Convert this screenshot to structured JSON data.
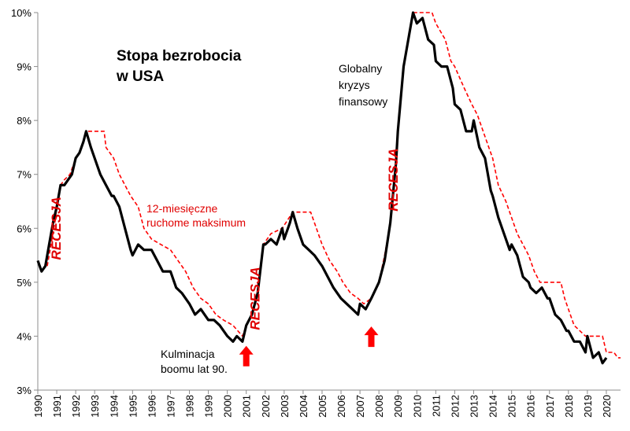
{
  "chart_data": {
    "type": "line",
    "title": [
      "Stopa bezrobocia",
      "w USA"
    ],
    "ylim": [
      3,
      10
    ],
    "xlim": [
      1990,
      2020.75
    ],
    "y_ticks": [
      "3%",
      "4%",
      "5%",
      "6%",
      "7%",
      "8%",
      "9%",
      "10%"
    ],
    "x_ticks": [
      "1990",
      "1991",
      "1992",
      "1993",
      "1994",
      "1995",
      "1996",
      "1997",
      "1998",
      "1999",
      "2000",
      "2001",
      "2002",
      "2003",
      "2004",
      "2005",
      "2006",
      "2007",
      "2008",
      "2009",
      "2010",
      "2011",
      "2012",
      "2013",
      "2014",
      "2015",
      "2016",
      "2017",
      "2018",
      "2019",
      "2020"
    ],
    "colors": {
      "unemployment": "#000000",
      "max12": "#ff0000",
      "recession": "#e00000",
      "arrow": "#ff0000"
    },
    "series": [
      {
        "key": "unemployment",
        "points": [
          [
            1990.0,
            5.4
          ],
          [
            1990.2,
            5.2
          ],
          [
            1990.4,
            5.3
          ],
          [
            1990.6,
            5.7
          ],
          [
            1990.8,
            6.1
          ],
          [
            1991.0,
            6.4
          ],
          [
            1991.2,
            6.8
          ],
          [
            1991.4,
            6.8
          ],
          [
            1991.6,
            6.9
          ],
          [
            1991.8,
            7.0
          ],
          [
            1992.0,
            7.3
          ],
          [
            1992.2,
            7.4
          ],
          [
            1992.4,
            7.6
          ],
          [
            1992.55,
            7.8
          ],
          [
            1992.8,
            7.5
          ],
          [
            1993.0,
            7.3
          ],
          [
            1993.3,
            7.0
          ],
          [
            1993.6,
            6.8
          ],
          [
            1993.9,
            6.6
          ],
          [
            1994.0,
            6.6
          ],
          [
            1994.3,
            6.4
          ],
          [
            1994.6,
            6.0
          ],
          [
            1994.9,
            5.6
          ],
          [
            1995.0,
            5.5
          ],
          [
            1995.3,
            5.7
          ],
          [
            1995.6,
            5.6
          ],
          [
            1995.9,
            5.6
          ],
          [
            1996.0,
            5.6
          ],
          [
            1996.3,
            5.4
          ],
          [
            1996.6,
            5.2
          ],
          [
            1997.0,
            5.2
          ],
          [
            1997.3,
            4.9
          ],
          [
            1997.6,
            4.8
          ],
          [
            1998.0,
            4.6
          ],
          [
            1998.3,
            4.4
          ],
          [
            1998.6,
            4.5
          ],
          [
            1999.0,
            4.3
          ],
          [
            1999.3,
            4.3
          ],
          [
            1999.6,
            4.2
          ],
          [
            2000.0,
            4.0
          ],
          [
            2000.3,
            3.9
          ],
          [
            2000.5,
            4.0
          ],
          [
            2000.8,
            3.9
          ],
          [
            2001.0,
            4.2
          ],
          [
            2001.3,
            4.4
          ],
          [
            2001.6,
            4.8
          ],
          [
            2001.9,
            5.7
          ],
          [
            2002.0,
            5.7
          ],
          [
            2002.3,
            5.8
          ],
          [
            2002.6,
            5.7
          ],
          [
            2002.9,
            6.0
          ],
          [
            2003.0,
            5.8
          ],
          [
            2003.3,
            6.1
          ],
          [
            2003.45,
            6.3
          ],
          [
            2003.7,
            6.0
          ],
          [
            2004.0,
            5.7
          ],
          [
            2004.3,
            5.6
          ],
          [
            2004.6,
            5.5
          ],
          [
            2005.0,
            5.3
          ],
          [
            2005.3,
            5.1
          ],
          [
            2005.6,
            4.9
          ],
          [
            2006.0,
            4.7
          ],
          [
            2006.3,
            4.6
          ],
          [
            2006.6,
            4.5
          ],
          [
            2006.9,
            4.4
          ],
          [
            2007.0,
            4.6
          ],
          [
            2007.3,
            4.5
          ],
          [
            2007.6,
            4.7
          ],
          [
            2008.0,
            5.0
          ],
          [
            2008.3,
            5.4
          ],
          [
            2008.6,
            6.1
          ],
          [
            2008.9,
            7.2
          ],
          [
            2009.0,
            7.8
          ],
          [
            2009.3,
            9.0
          ],
          [
            2009.6,
            9.6
          ],
          [
            2009.8,
            10.0
          ],
          [
            2010.0,
            9.8
          ],
          [
            2010.3,
            9.9
          ],
          [
            2010.6,
            9.5
          ],
          [
            2010.9,
            9.4
          ],
          [
            2011.0,
            9.1
          ],
          [
            2011.3,
            9.0
          ],
          [
            2011.6,
            9.0
          ],
          [
            2011.9,
            8.6
          ],
          [
            2012.0,
            8.3
          ],
          [
            2012.3,
            8.2
          ],
          [
            2012.6,
            7.8
          ],
          [
            2012.9,
            7.8
          ],
          [
            2013.0,
            8.0
          ],
          [
            2013.3,
            7.5
          ],
          [
            2013.6,
            7.3
          ],
          [
            2013.9,
            6.7
          ],
          [
            2014.0,
            6.6
          ],
          [
            2014.3,
            6.2
          ],
          [
            2014.6,
            5.9
          ],
          [
            2014.9,
            5.6
          ],
          [
            2015.0,
            5.7
          ],
          [
            2015.3,
            5.5
          ],
          [
            2015.6,
            5.1
          ],
          [
            2015.9,
            5.0
          ],
          [
            2016.0,
            4.9
          ],
          [
            2016.3,
            4.8
          ],
          [
            2016.6,
            4.9
          ],
          [
            2016.9,
            4.7
          ],
          [
            2017.0,
            4.7
          ],
          [
            2017.3,
            4.4
          ],
          [
            2017.6,
            4.3
          ],
          [
            2017.9,
            4.1
          ],
          [
            2018.0,
            4.1
          ],
          [
            2018.3,
            3.9
          ],
          [
            2018.6,
            3.9
          ],
          [
            2018.9,
            3.7
          ],
          [
            2019.0,
            4.0
          ],
          [
            2019.3,
            3.6
          ],
          [
            2019.6,
            3.7
          ],
          [
            2019.8,
            3.5
          ],
          [
            2020.0,
            3.6
          ]
        ]
      },
      {
        "key": "max12",
        "name": "12-miesięczne ruchome maksimum",
        "points": [
          [
            1990.5,
            5.3
          ],
          [
            1990.7,
            5.7
          ],
          [
            1990.9,
            6.1
          ],
          [
            1991.0,
            6.4
          ],
          [
            1991.2,
            6.8
          ],
          [
            1991.4,
            6.9
          ],
          [
            1991.7,
            7.0
          ],
          [
            1992.0,
            7.3
          ],
          [
            1992.2,
            7.4
          ],
          [
            1992.4,
            7.6
          ],
          [
            1992.55,
            7.8
          ],
          [
            1993.5,
            7.8
          ],
          [
            1993.6,
            7.5
          ],
          [
            1994.0,
            7.3
          ],
          [
            1994.3,
            7.0
          ],
          [
            1994.6,
            6.8
          ],
          [
            1994.9,
            6.6
          ],
          [
            1995.3,
            6.4
          ],
          [
            1995.6,
            6.0
          ],
          [
            1996.0,
            5.8
          ],
          [
            1996.5,
            5.7
          ],
          [
            1997.0,
            5.6
          ],
          [
            1997.4,
            5.4
          ],
          [
            1997.8,
            5.2
          ],
          [
            1998.2,
            4.9
          ],
          [
            1998.6,
            4.7
          ],
          [
            1999.0,
            4.6
          ],
          [
            1999.4,
            4.4
          ],
          [
            1999.8,
            4.3
          ],
          [
            2000.3,
            4.2
          ],
          [
            2000.8,
            4.0
          ],
          [
            2001.0,
            4.2
          ],
          [
            2001.3,
            4.4
          ],
          [
            2001.6,
            4.8
          ],
          [
            2001.9,
            5.7
          ],
          [
            2002.3,
            5.9
          ],
          [
            2002.9,
            6.0
          ],
          [
            2003.45,
            6.3
          ],
          [
            2004.4,
            6.3
          ],
          [
            2004.7,
            6.0
          ],
          [
            2005.0,
            5.7
          ],
          [
            2005.4,
            5.4
          ],
          [
            2005.8,
            5.2
          ],
          [
            2006.1,
            5.0
          ],
          [
            2006.5,
            4.8
          ],
          [
            2006.9,
            4.7
          ],
          [
            2007.2,
            4.6
          ],
          [
            2007.6,
            4.7
          ],
          [
            2008.0,
            5.0
          ],
          [
            2008.3,
            5.5
          ],
          [
            2008.6,
            6.1
          ],
          [
            2008.9,
            7.2
          ],
          [
            2009.0,
            7.8
          ],
          [
            2009.3,
            9.0
          ],
          [
            2009.6,
            9.6
          ],
          [
            2009.8,
            10.0
          ],
          [
            2010.8,
            10.0
          ],
          [
            2011.0,
            9.8
          ],
          [
            2011.5,
            9.5
          ],
          [
            2011.8,
            9.1
          ],
          [
            2012.0,
            9.0
          ],
          [
            2012.5,
            8.6
          ],
          [
            2012.9,
            8.3
          ],
          [
            2013.2,
            8.1
          ],
          [
            2013.5,
            7.8
          ],
          [
            2013.8,
            7.5
          ],
          [
            2014.0,
            7.3
          ],
          [
            2014.3,
            6.8
          ],
          [
            2014.7,
            6.5
          ],
          [
            2015.0,
            6.2
          ],
          [
            2015.3,
            5.9
          ],
          [
            2015.6,
            5.7
          ],
          [
            2015.9,
            5.5
          ],
          [
            2016.2,
            5.2
          ],
          [
            2016.5,
            5.0
          ],
          [
            2017.6,
            5.0
          ],
          [
            2017.8,
            4.7
          ],
          [
            2018.0,
            4.5
          ],
          [
            2018.3,
            4.2
          ],
          [
            2018.9,
            4.0
          ],
          [
            2019.8,
            4.0
          ],
          [
            2020.0,
            3.7
          ],
          [
            2020.4,
            3.7
          ],
          [
            2020.6,
            3.6
          ],
          [
            2020.75,
            3.6
          ]
        ]
      }
    ],
    "annotations": {
      "max12_label": [
        "12-miesięczne",
        "ruchome maksimum"
      ],
      "crisis_label": [
        "Globalny",
        "kryzys",
        "finansowy"
      ],
      "peak_label": [
        "Kulminacja",
        "boomu lat 90."
      ],
      "recession_label": "RECESJA"
    },
    "recessions": [
      {
        "x": 1991.2,
        "y": 6.0
      },
      {
        "x": 2001.7,
        "y": 4.7
      },
      {
        "x": 2009.0,
        "y": 6.9
      }
    ],
    "arrows": [
      {
        "x": 2001.0,
        "y": 3.82
      },
      {
        "x": 2007.6,
        "y": 4.18
      }
    ]
  }
}
